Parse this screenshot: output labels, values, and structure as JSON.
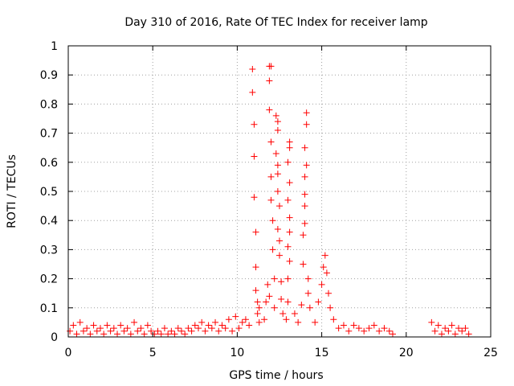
{
  "chart_data": {
    "type": "scatter",
    "title": "Day 310 of 2016, Rate Of TEC Index for receiver lamp",
    "xlabel": "GPS time / hours",
    "ylabel": "ROTI / TECUs",
    "xlim": [
      0,
      25
    ],
    "ylim": [
      0,
      1
    ],
    "xticks": [
      0,
      5,
      10,
      15,
      20,
      25
    ],
    "yticks": [
      0,
      0.1,
      0.2,
      0.3,
      0.4,
      0.5,
      0.6,
      0.7,
      0.8,
      0.9,
      1
    ],
    "grid": true,
    "marker": "+",
    "color": "#ff0000",
    "series": [
      {
        "name": "ROTI",
        "points": [
          [
            0.1,
            0.02
          ],
          [
            0.3,
            0.04
          ],
          [
            0.5,
            0.01
          ],
          [
            0.7,
            0.05
          ],
          [
            0.9,
            0.02
          ],
          [
            1.1,
            0.03
          ],
          [
            1.3,
            0.01
          ],
          [
            1.5,
            0.04
          ],
          [
            1.7,
            0.02
          ],
          [
            1.9,
            0.03
          ],
          [
            2.1,
            0.01
          ],
          [
            2.3,
            0.04
          ],
          [
            2.5,
            0.02
          ],
          [
            2.7,
            0.03
          ],
          [
            2.9,
            0.01
          ],
          [
            3.1,
            0.04
          ],
          [
            3.3,
            0.02
          ],
          [
            3.5,
            0.03
          ],
          [
            3.7,
            0.01
          ],
          [
            3.9,
            0.05
          ],
          [
            4.1,
            0.02
          ],
          [
            4.3,
            0.03
          ],
          [
            4.5,
            0.01
          ],
          [
            4.7,
            0.04
          ],
          [
            4.9,
            0.02
          ],
          [
            5.1,
            0.01
          ],
          [
            5.3,
            0.02
          ],
          [
            5.5,
            0.01
          ],
          [
            5.7,
            0.03
          ],
          [
            5.9,
            0.01
          ],
          [
            6.1,
            0.02
          ],
          [
            6.3,
            0.01
          ],
          [
            6.5,
            0.03
          ],
          [
            6.7,
            0.02
          ],
          [
            6.9,
            0.01
          ],
          [
            7.1,
            0.03
          ],
          [
            7.3,
            0.02
          ],
          [
            7.5,
            0.04
          ],
          [
            7.7,
            0.03
          ],
          [
            7.9,
            0.05
          ],
          [
            8.1,
            0.02
          ],
          [
            8.3,
            0.04
          ],
          [
            8.5,
            0.03
          ],
          [
            8.7,
            0.05
          ],
          [
            8.9,
            0.02
          ],
          [
            9.1,
            0.04
          ],
          [
            9.3,
            0.03
          ],
          [
            9.5,
            0.06
          ],
          [
            9.7,
            0.02
          ],
          [
            9.9,
            0.07
          ],
          [
            10.1,
            0.03
          ],
          [
            10.3,
            0.05
          ],
          [
            10.5,
            0.06
          ],
          [
            10.7,
            0.04
          ],
          [
            10.9,
            0.92
          ],
          [
            10.9,
            0.84
          ],
          [
            11.0,
            0.73
          ],
          [
            11.0,
            0.62
          ],
          [
            11.0,
            0.48
          ],
          [
            11.1,
            0.36
          ],
          [
            11.1,
            0.24
          ],
          [
            11.1,
            0.16
          ],
          [
            11.2,
            0.12
          ],
          [
            11.2,
            0.08
          ],
          [
            11.3,
            0.1
          ],
          [
            11.3,
            0.05
          ],
          [
            11.6,
            0.06
          ],
          [
            11.7,
            0.12
          ],
          [
            11.8,
            0.18
          ],
          [
            11.9,
            0.14
          ],
          [
            11.9,
            0.93
          ],
          [
            12.0,
            0.93
          ],
          [
            11.9,
            0.88
          ],
          [
            11.9,
            0.78
          ],
          [
            12.0,
            0.67
          ],
          [
            12.0,
            0.55
          ],
          [
            12.0,
            0.47
          ],
          [
            12.1,
            0.4
          ],
          [
            12.1,
            0.3
          ],
          [
            12.2,
            0.2
          ],
          [
            12.2,
            0.1
          ],
          [
            12.3,
            0.76
          ],
          [
            12.4,
            0.74
          ],
          [
            12.4,
            0.71
          ],
          [
            12.3,
            0.63
          ],
          [
            12.4,
            0.59
          ],
          [
            12.4,
            0.56
          ],
          [
            12.4,
            0.5
          ],
          [
            12.5,
            0.45
          ],
          [
            12.4,
            0.37
          ],
          [
            12.5,
            0.33
          ],
          [
            12.5,
            0.28
          ],
          [
            12.6,
            0.19
          ],
          [
            12.6,
            0.13
          ],
          [
            12.7,
            0.08
          ],
          [
            12.9,
            0.06
          ],
          [
            13.0,
            0.12
          ],
          [
            13.0,
            0.2
          ],
          [
            13.1,
            0.26
          ],
          [
            13.0,
            0.31
          ],
          [
            13.1,
            0.36
          ],
          [
            13.1,
            0.41
          ],
          [
            13.0,
            0.47
          ],
          [
            13.1,
            0.53
          ],
          [
            13.0,
            0.6
          ],
          [
            13.1,
            0.65
          ],
          [
            13.1,
            0.67
          ],
          [
            13.4,
            0.08
          ],
          [
            13.6,
            0.05
          ],
          [
            13.8,
            0.11
          ],
          [
            13.9,
            0.25
          ],
          [
            13.9,
            0.35
          ],
          [
            14.0,
            0.39
          ],
          [
            14.0,
            0.45
          ],
          [
            14.0,
            0.49
          ],
          [
            14.0,
            0.55
          ],
          [
            14.1,
            0.59
          ],
          [
            14.0,
            0.65
          ],
          [
            14.1,
            0.73
          ],
          [
            14.1,
            0.77
          ],
          [
            14.2,
            0.2
          ],
          [
            14.2,
            0.15
          ],
          [
            14.3,
            0.1
          ],
          [
            14.6,
            0.05
          ],
          [
            14.8,
            0.12
          ],
          [
            15.0,
            0.18
          ],
          [
            15.1,
            0.24
          ],
          [
            15.2,
            0.28
          ],
          [
            15.3,
            0.22
          ],
          [
            15.4,
            0.15
          ],
          [
            15.5,
            0.1
          ],
          [
            15.7,
            0.06
          ],
          [
            16.0,
            0.03
          ],
          [
            16.3,
            0.04
          ],
          [
            16.6,
            0.02
          ],
          [
            16.9,
            0.04
          ],
          [
            17.2,
            0.03
          ],
          [
            17.5,
            0.02
          ],
          [
            17.8,
            0.03
          ],
          [
            18.1,
            0.04
          ],
          [
            18.4,
            0.02
          ],
          [
            18.7,
            0.03
          ],
          [
            19.0,
            0.02
          ],
          [
            19.2,
            0.01
          ],
          [
            21.5,
            0.05
          ],
          [
            21.7,
            0.02
          ],
          [
            21.9,
            0.04
          ],
          [
            22.1,
            0.01
          ],
          [
            22.3,
            0.03
          ],
          [
            22.5,
            0.02
          ],
          [
            22.7,
            0.04
          ],
          [
            22.9,
            0.01
          ],
          [
            23.1,
            0.03
          ],
          [
            23.3,
            0.02
          ],
          [
            23.5,
            0.03
          ],
          [
            23.7,
            0.01
          ]
        ]
      }
    ]
  }
}
